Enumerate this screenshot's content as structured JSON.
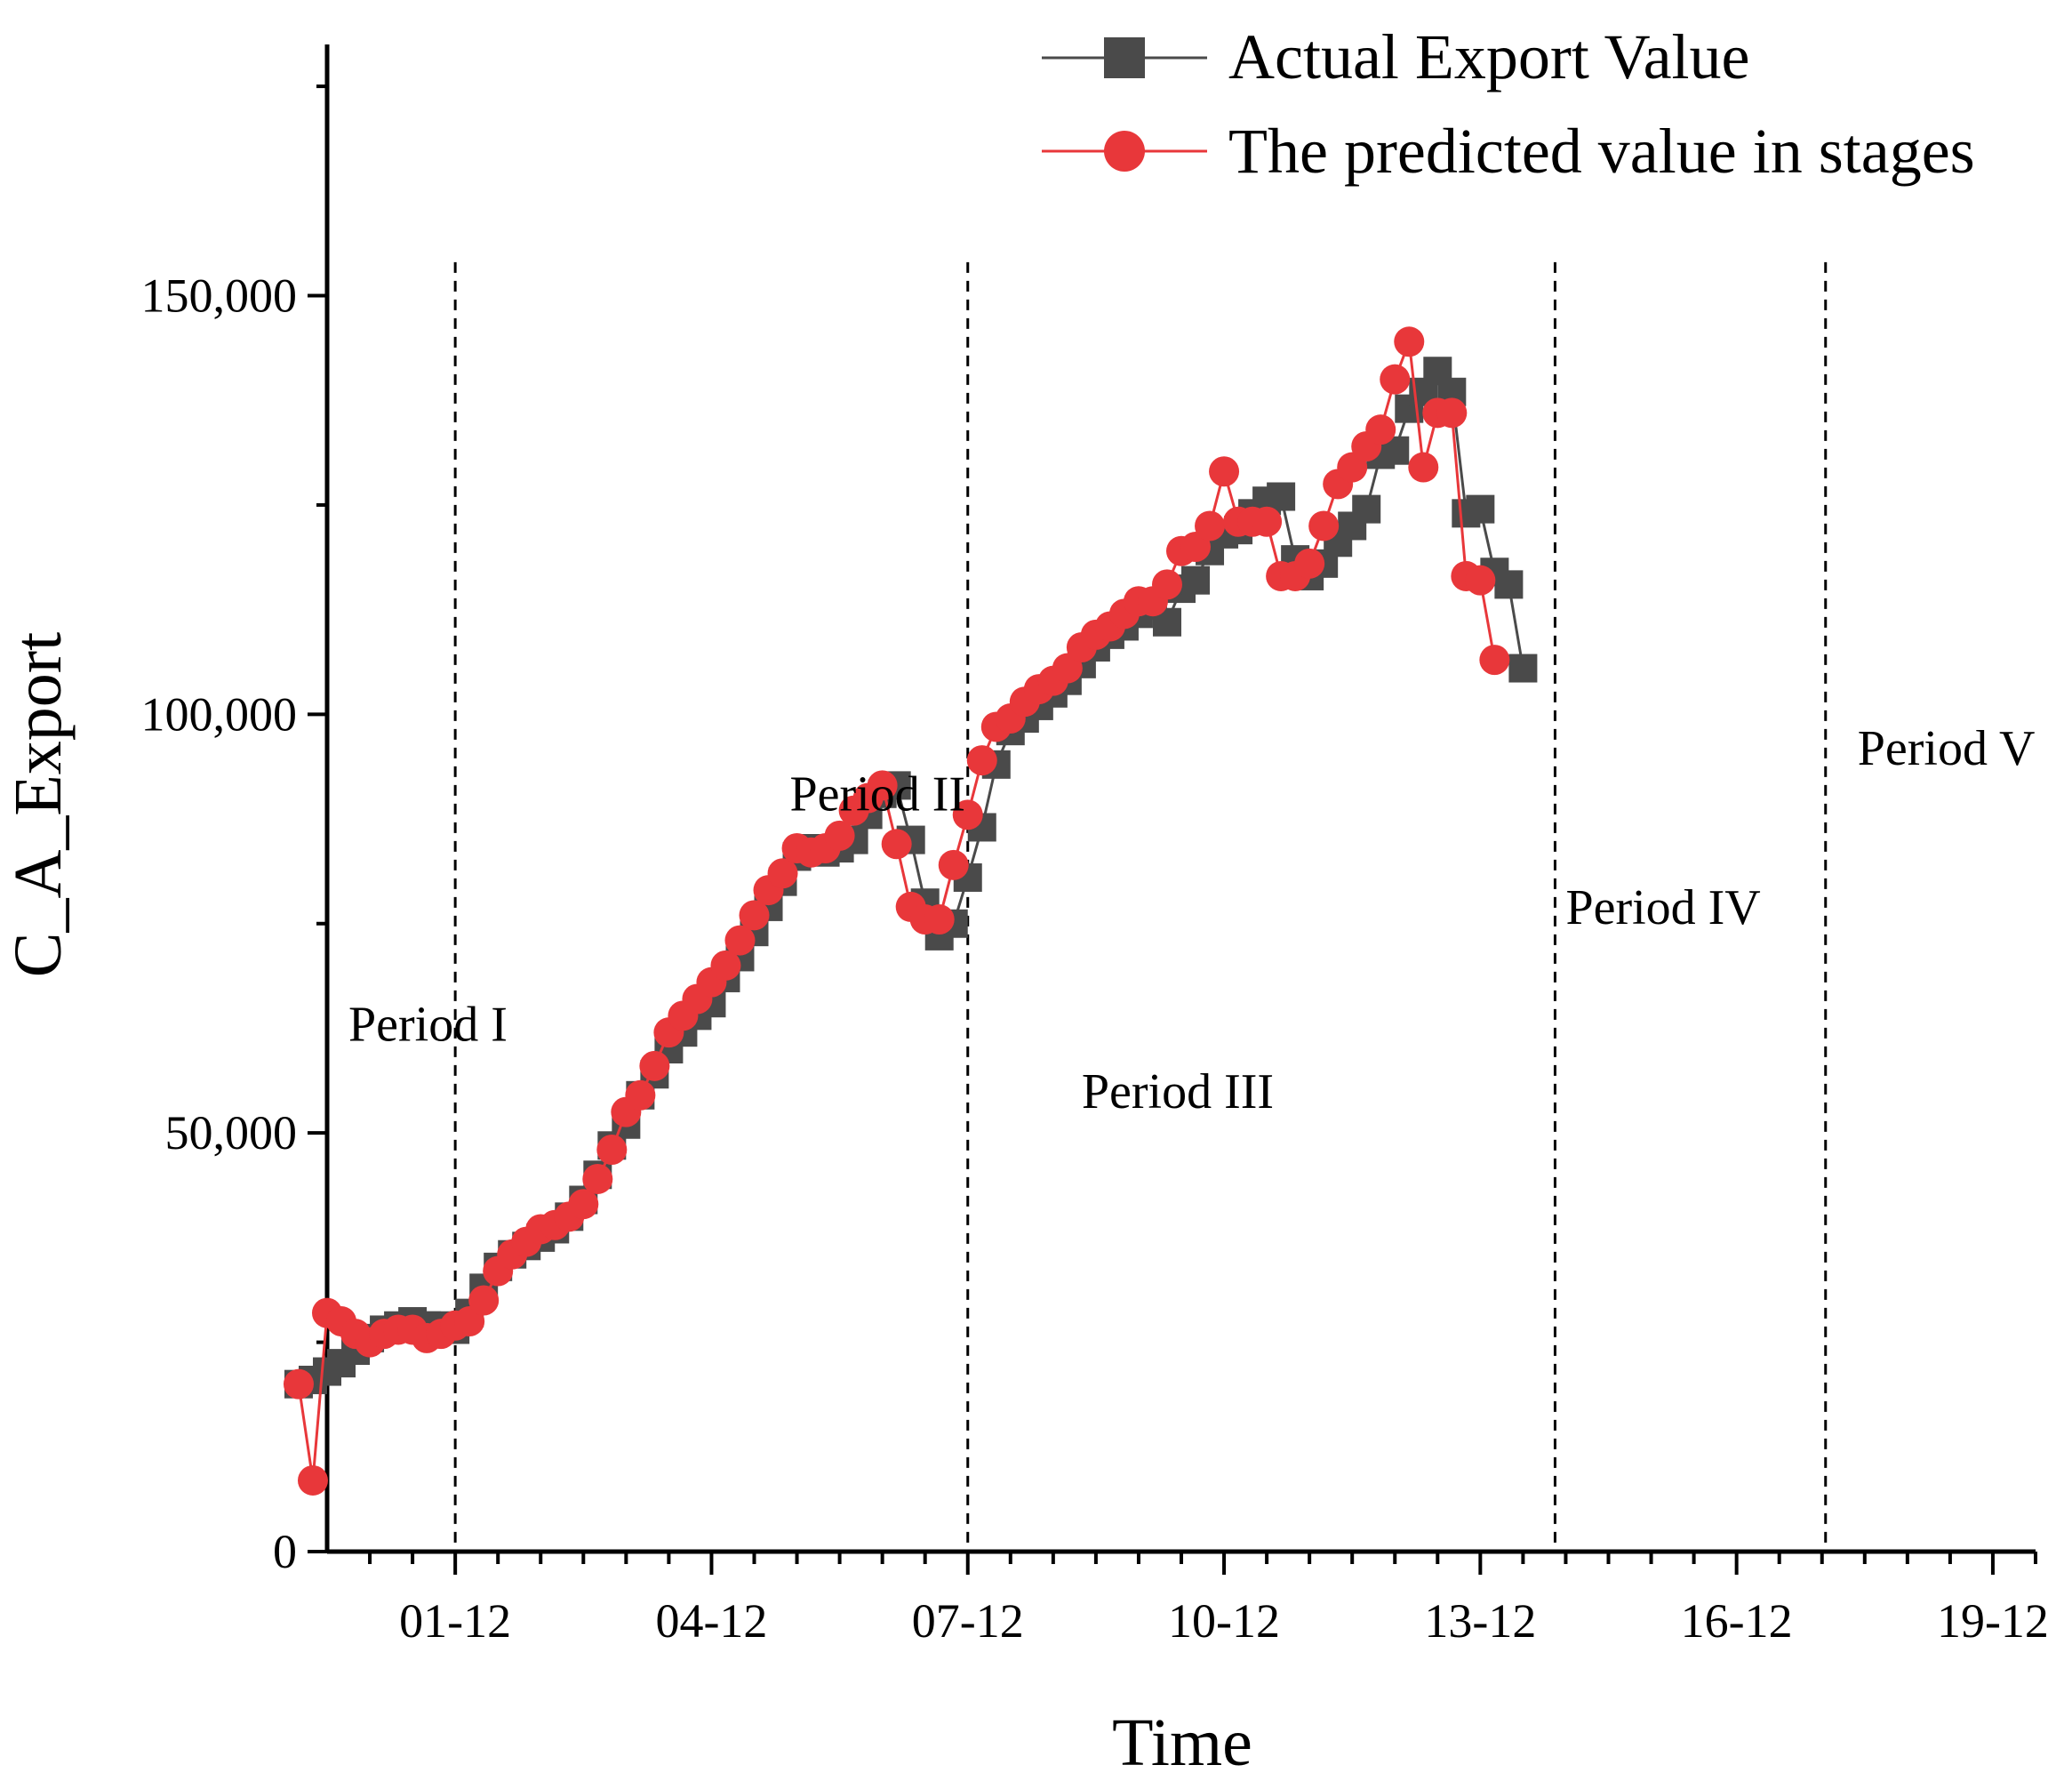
{
  "chart_data": {
    "type": "line",
    "xlabel": "Time",
    "ylabel": "C_A_Export",
    "ylim": [
      0,
      180000
    ],
    "y_ticks": [
      0,
      50000,
      100000,
      150000
    ],
    "y_tick_labels": [
      "0",
      "50,000",
      "100,000",
      "150,000"
    ],
    "x_range": [
      -6,
      234
    ],
    "x_tick_labels": [
      {
        "x": 12,
        "label": "01-12"
      },
      {
        "x": 48,
        "label": "04-12"
      },
      {
        "x": 84,
        "label": "07-12"
      },
      {
        "x": 120,
        "label": "10-12"
      },
      {
        "x": 156,
        "label": "13-12"
      },
      {
        "x": 192,
        "label": "16-12"
      },
      {
        "x": 228,
        "label": "19-12"
      }
    ],
    "period_dividers": [
      12,
      84,
      166.5,
      204.5
    ],
    "periods": [
      {
        "label": "Period I",
        "x": -3,
        "y": 61000
      },
      {
        "label": "Period II",
        "x": 59,
        "y": 88500
      },
      {
        "label": "Period III",
        "x": 100,
        "y": 53000
      },
      {
        "label": "Period IV",
        "x": 168,
        "y": 75000
      },
      {
        "label": "Period V",
        "x": 209,
        "y": 94000
      }
    ],
    "legend": {
      "position": "top-right"
    },
    "series": [
      {
        "name": "Actual Export Value",
        "color": "#4a4a4a",
        "marker": "square",
        "points": [
          [
            -10,
            20000
          ],
          [
            -8,
            20500
          ],
          [
            -6,
            21500
          ],
          [
            -4,
            22500
          ],
          [
            -2,
            24000
          ],
          [
            0,
            25500
          ],
          [
            2,
            26500
          ],
          [
            4,
            27000
          ],
          [
            6,
            27500
          ],
          [
            8,
            27000
          ],
          [
            10,
            27000
          ],
          [
            12,
            26500
          ],
          [
            14,
            28500
          ],
          [
            16,
            31500
          ],
          [
            18,
            34000
          ],
          [
            20,
            35500
          ],
          [
            22,
            36500
          ],
          [
            24,
            37500
          ],
          [
            26,
            38500
          ],
          [
            28,
            40000
          ],
          [
            30,
            42000
          ],
          [
            32,
            45000
          ],
          [
            34,
            48500
          ],
          [
            36,
            51000
          ],
          [
            38,
            54500
          ],
          [
            40,
            57000
          ],
          [
            42,
            60000
          ],
          [
            44,
            62000
          ],
          [
            46,
            64000
          ],
          [
            48,
            65500
          ],
          [
            50,
            68500
          ],
          [
            52,
            71000
          ],
          [
            54,
            74000
          ],
          [
            56,
            77000
          ],
          [
            58,
            80000
          ],
          [
            60,
            83000
          ],
          [
            62,
            84000
          ],
          [
            64,
            83500
          ],
          [
            66,
            84000
          ],
          [
            68,
            85000
          ],
          [
            70,
            88000
          ],
          [
            72,
            90500
          ],
          [
            74,
            91500
          ],
          [
            76,
            85000
          ],
          [
            78,
            77500
          ],
          [
            80,
            73500
          ],
          [
            82,
            75000
          ],
          [
            84,
            80500
          ],
          [
            86,
            86500
          ],
          [
            88,
            94000
          ],
          [
            90,
            98000
          ],
          [
            92,
            99500
          ],
          [
            94,
            101000
          ],
          [
            96,
            102500
          ],
          [
            98,
            104000
          ],
          [
            100,
            106000
          ],
          [
            102,
            108000
          ],
          [
            104,
            109500
          ],
          [
            106,
            110500
          ],
          [
            108,
            112000
          ],
          [
            110,
            113000
          ],
          [
            112,
            111000
          ],
          [
            114,
            115000
          ],
          [
            116,
            116000
          ],
          [
            118,
            119500
          ],
          [
            120,
            121500
          ],
          [
            122,
            122000
          ],
          [
            124,
            124000
          ],
          [
            126,
            125500
          ],
          [
            128,
            126000
          ],
          [
            130,
            118500
          ],
          [
            132,
            116500
          ],
          [
            134,
            118000
          ],
          [
            136,
            120500
          ],
          [
            138,
            122500
          ],
          [
            140,
            124500
          ],
          [
            142,
            131000
          ],
          [
            144,
            131500
          ],
          [
            146,
            136500
          ],
          [
            148,
            138500
          ],
          [
            150,
            141000
          ],
          [
            152,
            138500
          ],
          [
            154,
            124000
          ],
          [
            156,
            124500
          ],
          [
            158,
            117000
          ],
          [
            160,
            115500
          ],
          [
            162,
            105500
          ]
        ]
      },
      {
        "name": "The predicted value in stages",
        "color": "#e8373a",
        "marker": "circle",
        "points": [
          [
            -10,
            20000
          ],
          [
            -8,
            8500
          ],
          [
            -6,
            28500
          ],
          [
            -4,
            27500
          ],
          [
            -2,
            26000
          ],
          [
            0,
            25000
          ],
          [
            2,
            26000
          ],
          [
            4,
            26500
          ],
          [
            6,
            26500
          ],
          [
            8,
            25500
          ],
          [
            10,
            26000
          ],
          [
            12,
            27000
          ],
          [
            14,
            27500
          ],
          [
            16,
            30000
          ],
          [
            18,
            33500
          ],
          [
            20,
            35500
          ],
          [
            22,
            37000
          ],
          [
            24,
            38500
          ],
          [
            26,
            39000
          ],
          [
            28,
            40000
          ],
          [
            30,
            41500
          ],
          [
            32,
            44500
          ],
          [
            34,
            48000
          ],
          [
            36,
            52500
          ],
          [
            38,
            54500
          ],
          [
            40,
            58000
          ],
          [
            42,
            62000
          ],
          [
            44,
            64000
          ],
          [
            46,
            66000
          ],
          [
            48,
            68000
          ],
          [
            50,
            70000
          ],
          [
            52,
            73000
          ],
          [
            54,
            76000
          ],
          [
            56,
            79000
          ],
          [
            58,
            81000
          ],
          [
            60,
            84000
          ],
          [
            62,
            83500
          ],
          [
            64,
            84000
          ],
          [
            66,
            85500
          ],
          [
            68,
            88500
          ],
          [
            70,
            90000
          ],
          [
            72,
            91500
          ],
          [
            74,
            84500
          ],
          [
            76,
            77000
          ],
          [
            78,
            75500
          ],
          [
            80,
            75500
          ],
          [
            82,
            82000
          ],
          [
            84,
            88000
          ],
          [
            86,
            94500
          ],
          [
            88,
            98500
          ],
          [
            90,
            99500
          ],
          [
            92,
            101500
          ],
          [
            94,
            103000
          ],
          [
            96,
            104000
          ],
          [
            98,
            105500
          ],
          [
            100,
            108000
          ],
          [
            102,
            109500
          ],
          [
            104,
            110500
          ],
          [
            106,
            112000
          ],
          [
            108,
            113500
          ],
          [
            110,
            113500
          ],
          [
            112,
            115500
          ],
          [
            114,
            119500
          ],
          [
            116,
            120000
          ],
          [
            118,
            122500
          ],
          [
            120,
            129000
          ],
          [
            122,
            123000
          ],
          [
            124,
            123000
          ],
          [
            126,
            123000
          ],
          [
            128,
            116500
          ],
          [
            130,
            116500
          ],
          [
            132,
            118000
          ],
          [
            134,
            122500
          ],
          [
            136,
            127500
          ],
          [
            138,
            129500
          ],
          [
            140,
            132000
          ],
          [
            142,
            134000
          ],
          [
            144,
            140000
          ],
          [
            146,
            144500
          ],
          [
            148,
            129500
          ],
          [
            150,
            136000
          ],
          [
            152,
            136000
          ],
          [
            154,
            116500
          ],
          [
            156,
            116000
          ],
          [
            158,
            106500
          ]
        ]
      }
    ]
  }
}
